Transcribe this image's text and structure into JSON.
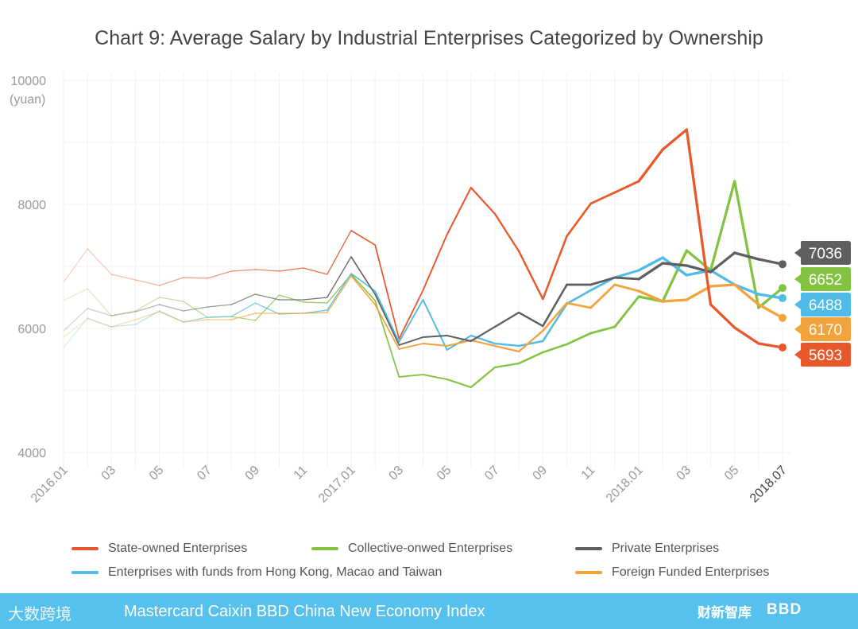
{
  "chart_data": {
    "type": "line",
    "title": "Chart 9: Average Salary by Industrial Enterprises Categorized by Ownership",
    "ylabel": "(yuan)",
    "ylim": [
      4000,
      10000
    ],
    "yticks": [
      "4000",
      "6000",
      "8000",
      "10000"
    ],
    "x": [
      "2016.01",
      "2016.02",
      "2016.03",
      "2016.04",
      "2016.05",
      "2016.06",
      "2016.07",
      "2016.08",
      "2016.09",
      "2016.10",
      "2016.11",
      "2016.12",
      "2017.01",
      "2017.02",
      "2017.03",
      "2017.04",
      "2017.05",
      "2017.06",
      "2017.07",
      "2017.08",
      "2017.09",
      "2017.10",
      "2017.11",
      "2017.12",
      "2018.01",
      "2018.02",
      "2018.03",
      "2018.04",
      "2018.05",
      "2018.06",
      "2018.07"
    ],
    "xtick_labels": [
      "2016.01",
      "03",
      "05",
      "07",
      "09",
      "11",
      "2017.01",
      "03",
      "05",
      "07",
      "09",
      "11",
      "2018.01",
      "03",
      "05",
      "2018.07"
    ],
    "grid": true,
    "legend_placement": "bottom",
    "series": [
      {
        "name": "State-owned Enterprises",
        "color": "#e8582a",
        "end_label": "5693",
        "values": [
          6744,
          7282,
          6872,
          6782,
          6692,
          6820,
          6808,
          6923,
          6949,
          6923,
          6974,
          6872,
          7577,
          7346,
          5833,
          6615,
          7513,
          8269,
          7846,
          7244,
          6474,
          7487,
          8013,
          8192,
          8372,
          8885,
          9205,
          6385,
          6013,
          5756,
          5693
        ]
      },
      {
        "name": "Collective-onwed Enterprises",
        "color": "#82c341",
        "end_label": "6652",
        "values": [
          6449,
          6641,
          6205,
          6282,
          6500,
          6436,
          6179,
          6192,
          6128,
          6538,
          6423,
          6410,
          6872,
          6449,
          5218,
          5256,
          5179,
          5051,
          5372,
          5436,
          5615,
          5744,
          5923,
          6026,
          6513,
          6436,
          7256,
          6936,
          8372,
          6333,
          6652
        ]
      },
      {
        "name": "Private Enterprises",
        "color": "#5f5f60",
        "end_label": "7036",
        "values": [
          5962,
          6321,
          6205,
          6269,
          6385,
          6282,
          6346,
          6385,
          6551,
          6462,
          6462,
          6500,
          7154,
          6551,
          5731,
          5859,
          5885,
          5795,
          6026,
          6256,
          6038,
          6705,
          6705,
          6820,
          6795,
          7051,
          7013,
          6910,
          7218,
          7115,
          7036
        ]
      },
      {
        "name": "Enterprises with funds from Hong Kong, Macao and Taiwan",
        "color": "#4fbbe8",
        "end_label": "6488",
        "values": [
          5692,
          6167,
          6026,
          6064,
          6282,
          6103,
          6179,
          6192,
          6410,
          6231,
          6244,
          6295,
          6885,
          6603,
          5782,
          6462,
          5654,
          5885,
          5756,
          5718,
          5795,
          6397,
          6615,
          6820,
          6936,
          7141,
          6859,
          6936,
          6705,
          6551,
          6488
        ]
      },
      {
        "name": "Foreign Funded Enterprises",
        "color": "#f3a33b",
        "end_label": "6170",
        "values": [
          5859,
          6154,
          6026,
          6141,
          6269,
          6103,
          6141,
          6141,
          6244,
          6244,
          6244,
          6256,
          6846,
          6385,
          5667,
          5756,
          5718,
          5808,
          5718,
          5628,
          5962,
          6410,
          6333,
          6705,
          6603,
          6436,
          6462,
          6679,
          6705,
          6385,
          6170
        ]
      }
    ],
    "label_colors": {
      "7036": "#5f5f60",
      "6652": "#82c341",
      "6488": "#4fbbe8",
      "6170": "#f3a33b",
      "5693": "#e8582a"
    }
  },
  "legend": [
    {
      "label": "State-owned Enterprises",
      "color": "#e8582a"
    },
    {
      "label": "Collective-onwed Enterprises",
      "color": "#82c341"
    },
    {
      "label": "Private Enterprises",
      "color": "#5f5f60"
    },
    {
      "label": "Enterprises with funds from Hong Kong, Macao and Taiwan",
      "color": "#4fbbe8"
    },
    {
      "label": "Foreign Funded Enterprises",
      "color": "#f3a33b"
    }
  ],
  "footer": {
    "logo_text": "大数跨境",
    "title": "Mastercard Caixin BBD China New Economy Index",
    "caixin": "财新智库",
    "bbd": "BBD"
  }
}
